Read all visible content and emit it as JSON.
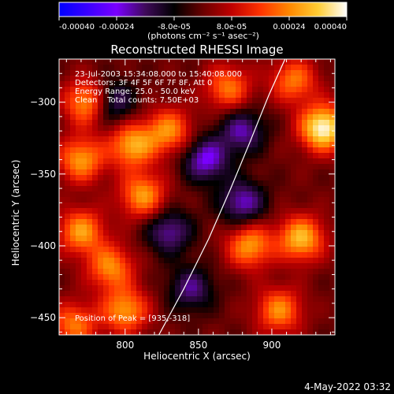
{
  "colorbar": {
    "ticks": [
      "-0.00040",
      "-0.00024",
      "-8.0e-05",
      "8.0e-05",
      "0.00024",
      "0.00040"
    ],
    "vmin": -0.0004,
    "vmax": 0.0004,
    "units": "(photons cm⁻² s⁻¹ asec⁻²)",
    "colormap": [
      "#0000ff",
      "#3a00ff",
      "#7a00ff",
      "#3f0a5a",
      "#000000",
      "#6a0000",
      "#c00000",
      "#ff3300",
      "#ff8800",
      "#ffcc33",
      "#ffffff"
    ]
  },
  "chart_data": {
    "type": "heatmap",
    "title": "Reconstructed RHESSI Image",
    "xlabel": "Heliocentric X (arcsec)",
    "ylabel": "Heliocentric Y (arcsec)",
    "xlim": [
      755,
      943
    ],
    "ylim": [
      -462,
      -270
    ],
    "xticks": [
      800,
      850,
      900
    ],
    "yticks": [
      -300,
      -350,
      -400,
      -450
    ],
    "annotations": [
      "23-Jul-2003 15:34:08.000 to 15:40:08.000",
      "Detectors: 3F 4F 5F 6F 7F 8F, Att 0",
      "Energy Range: 25.0 - 50.0 keV",
      "Clean    Total counts: 7.50E+03"
    ],
    "peak_label": "Position of Peak = [935,-318]",
    "peak": [
      935,
      -318
    ],
    "limb_curve": [
      [
        823,
        -462
      ],
      [
        840,
        -430
      ],
      [
        857,
        -395
      ],
      [
        872,
        -360
      ],
      [
        885,
        -328
      ],
      [
        898,
        -295
      ],
      [
        909,
        -270
      ]
    ],
    "bright_sources": [
      {
        "x": 935,
        "y": -318,
        "peak": 0.0004
      },
      {
        "x": 775,
        "y": -300,
        "peak": 0.0003
      },
      {
        "x": 805,
        "y": -330,
        "peak": 0.00028
      },
      {
        "x": 770,
        "y": -340,
        "peak": 0.00026
      },
      {
        "x": 830,
        "y": -320,
        "peak": 0.00024
      },
      {
        "x": 812,
        "y": -365,
        "peak": 0.00026
      },
      {
        "x": 770,
        "y": -390,
        "peak": 0.00026
      },
      {
        "x": 790,
        "y": -415,
        "peak": 0.00024
      },
      {
        "x": 800,
        "y": -445,
        "peak": 0.00026
      },
      {
        "x": 885,
        "y": -400,
        "peak": 0.00026
      },
      {
        "x": 920,
        "y": -395,
        "peak": 0.0003
      },
      {
        "x": 905,
        "y": -445,
        "peak": 0.00024
      },
      {
        "x": 870,
        "y": -290,
        "peak": 0.00022
      },
      {
        "x": 915,
        "y": -285,
        "peak": 0.00022
      },
      {
        "x": 765,
        "y": -455,
        "peak": 0.00022
      }
    ],
    "dark_sources": [
      {
        "x": 790,
        "y": -300,
        "peak": -0.00022
      },
      {
        "x": 855,
        "y": -340,
        "peak": -0.00024
      },
      {
        "x": 880,
        "y": -320,
        "peak": -0.0002
      },
      {
        "x": 830,
        "y": -390,
        "peak": -0.0002
      },
      {
        "x": 845,
        "y": -430,
        "peak": -0.00018
      },
      {
        "x": 880,
        "y": -370,
        "peak": -0.00022
      }
    ]
  },
  "timestamp": "4-May-2022 03:32"
}
